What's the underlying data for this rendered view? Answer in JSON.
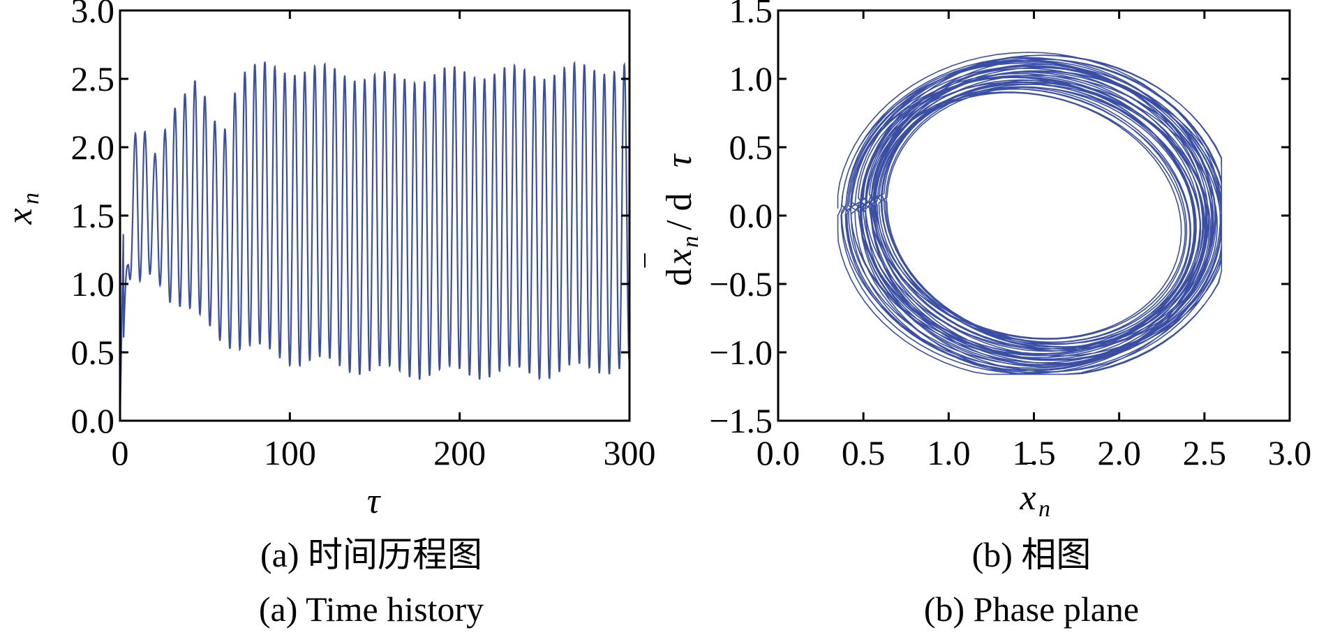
{
  "chart_data": [
    {
      "type": "line",
      "panel": "a",
      "caption_cn": "(a) 时间历程图",
      "caption_en": "(a) Time history",
      "xlabel": "τ",
      "ylabel": "x̄n",
      "xlim": [
        0,
        300
      ],
      "ylim": [
        0,
        3.0
      ],
      "xticks": [
        "0",
        "100",
        "200",
        "300"
      ],
      "yticks": [
        "0.0",
        "0.5",
        "1.0",
        "1.5",
        "2.0",
        "2.5",
        "3.0"
      ],
      "series": [
        {
          "color": "#3a4fa3",
          "description_points": {
            "x": [
              0,
              5,
              10,
              20,
              30,
              45,
              60,
              70,
              85,
              100,
              130,
              160,
              200,
              250,
              300
            ],
            "y_max": [
              0.0,
              1.5,
              2.2,
              1.95,
              2.3,
              2.45,
              2.1,
              2.55,
              2.58,
              2.58,
              2.55,
              2.5,
              2.55,
              2.55,
              2.6
            ],
            "y_min": [
              0.0,
              1.0,
              0.95,
              1.1,
              0.9,
              0.75,
              0.6,
              0.55,
              0.5,
              0.45,
              0.4,
              0.35,
              0.35,
              0.35,
              0.4
            ]
          }
        }
      ]
    },
    {
      "type": "line",
      "panel": "b",
      "caption_cn": "(b) 相图",
      "caption_en": "(b) Phase plane",
      "xlabel": "x̄n",
      "ylabel": "dx̄n / dτ",
      "xlim": [
        0,
        3.0
      ],
      "ylim": [
        -1.5,
        1.5
      ],
      "xticks": [
        "0.0",
        "0.5",
        "1.0",
        "1.5",
        "2.0",
        "2.5",
        "3.0"
      ],
      "yticks": [
        "-1.5",
        "-1.0",
        "-0.5",
        "0.0",
        "0.5",
        "1.0",
        "1.5"
      ],
      "series": [
        {
          "color": "#3a4fa3",
          "x_range": [
            0.35,
            2.6
          ],
          "y_range": [
            -1.15,
            1.22
          ]
        }
      ]
    }
  ]
}
